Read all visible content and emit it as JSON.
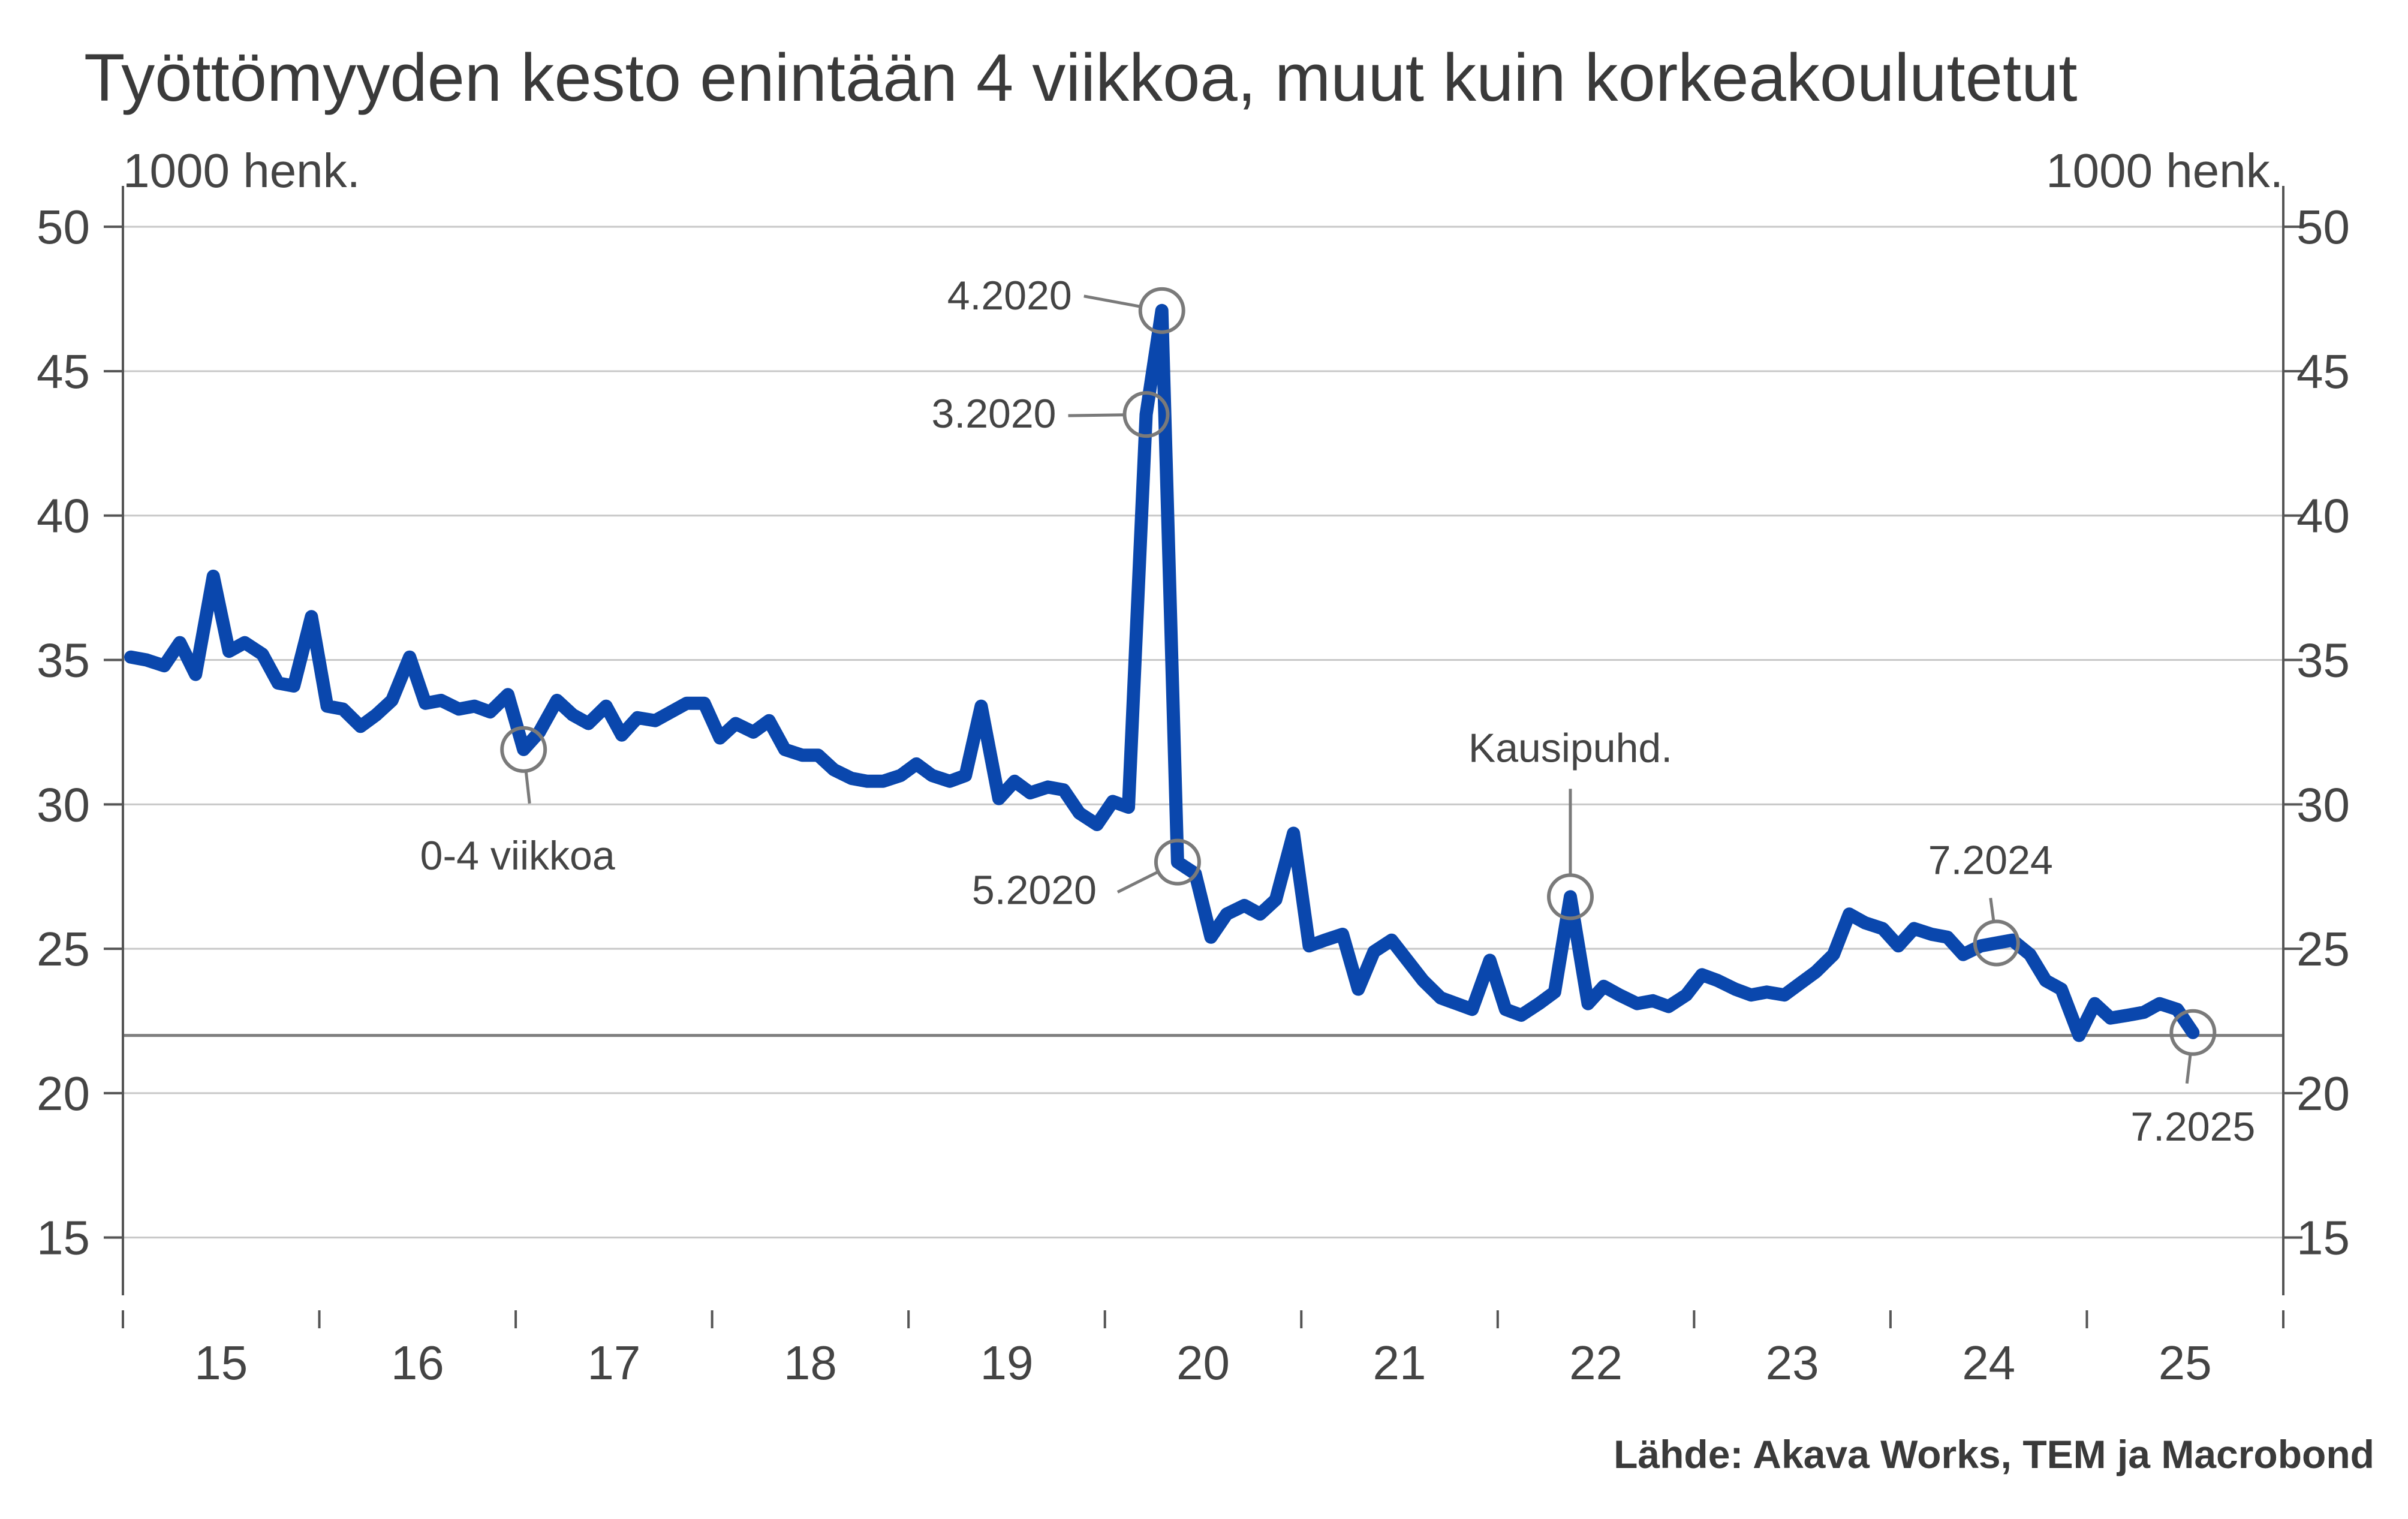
{
  "chart_data": {
    "type": "line",
    "title": "Työttömyyden kesto enintään 4 viikkoa, muut kuin korkeakoulutetut",
    "ylabel_left": "1000 henk.",
    "ylabel_right": "1000 henk.",
    "source": "Lähde: Akava Works, TEM ja Macrobond",
    "ylim": [
      13,
      51
    ],
    "yticks": [
      15,
      20,
      25,
      30,
      35,
      40,
      45,
      50
    ],
    "xlim": [
      2015.0,
      2026.0
    ],
    "xtick_labels": [
      "15",
      "16",
      "17",
      "18",
      "19",
      "20",
      "21",
      "22",
      "23",
      "24",
      "25"
    ],
    "reference_line": 22.0,
    "grid": true,
    "series": [
      {
        "color": "#0a47ad",
        "x": [
          2015.04,
          2015.12,
          2015.21,
          2015.29,
          2015.37,
          2015.46,
          2015.54,
          2015.62,
          2015.71,
          2015.79,
          2015.87,
          2015.96,
          2016.04,
          2016.12,
          2016.21,
          2016.29,
          2016.37,
          2016.46,
          2016.54,
          2016.62,
          2016.71,
          2016.79,
          2016.87,
          2016.96,
          2017.04,
          2017.12,
          2017.21,
          2017.29,
          2017.37,
          2017.46,
          2017.54,
          2017.62,
          2017.71,
          2017.79,
          2017.87,
          2017.96,
          2018.04,
          2018.12,
          2018.21,
          2018.29,
          2018.37,
          2018.46,
          2018.54,
          2018.62,
          2018.71,
          2018.79,
          2018.87,
          2018.96,
          2019.04,
          2019.12,
          2019.21,
          2019.29,
          2019.37,
          2019.46,
          2019.54,
          2019.62,
          2019.71,
          2019.79,
          2019.87,
          2019.96,
          2020.04,
          2020.12,
          2020.21,
          2020.29,
          2020.37,
          2020.46,
          2020.54,
          2020.62,
          2020.71,
          2020.79,
          2020.87,
          2020.96,
          2021.04,
          2021.12,
          2021.21,
          2021.29,
          2021.37,
          2021.46,
          2021.54,
          2021.62,
          2021.71,
          2021.79,
          2021.87,
          2021.96,
          2022.04,
          2022.12,
          2022.21,
          2022.29,
          2022.37,
          2022.46,
          2022.54,
          2022.62,
          2022.71,
          2022.79,
          2022.87,
          2022.96,
          2023.04,
          2023.12,
          2023.21,
          2023.29,
          2023.37,
          2023.46,
          2023.54,
          2023.62,
          2023.71,
          2023.79,
          2023.87,
          2023.96,
          2024.04,
          2024.12,
          2024.21,
          2024.29,
          2024.37,
          2024.46,
          2024.54,
          2024.62,
          2024.71,
          2024.79,
          2024.87,
          2024.96,
          2025.04,
          2025.12,
          2025.21,
          2025.29,
          2025.37,
          2025.46,
          2025.54
        ],
        "values": [
          35.1,
          35.0,
          34.8,
          35.6,
          34.5,
          37.9,
          35.3,
          35.6,
          35.2,
          34.2,
          34.1,
          36.5,
          33.4,
          33.3,
          32.7,
          33.1,
          33.6,
          35.1,
          33.5,
          33.6,
          33.3,
          33.4,
          33.2,
          33.8,
          31.9,
          32.5,
          33.6,
          33.1,
          32.8,
          33.4,
          32.4,
          33.0,
          32.9,
          33.2,
          33.5,
          33.5,
          32.3,
          32.8,
          32.5,
          32.9,
          31.9,
          31.7,
          31.7,
          31.2,
          30.9,
          30.8,
          30.8,
          31.0,
          31.4,
          31.0,
          30.8,
          31.0,
          33.4,
          30.2,
          30.8,
          30.4,
          30.6,
          30.5,
          29.7,
          29.3,
          30.1,
          29.9,
          43.5,
          47.1,
          28.0,
          27.6,
          25.4,
          26.2,
          26.5,
          26.2,
          26.7,
          29.0,
          25.1,
          25.3,
          25.5,
          23.6,
          24.9,
          25.3,
          24.6,
          23.9,
          23.3,
          23.1,
          22.9,
          24.6,
          22.9,
          22.7,
          23.1,
          23.5,
          26.8,
          23.1,
          23.7,
          23.4,
          23.1,
          23.2,
          23.0,
          23.4,
          24.1,
          23.9,
          23.6,
          23.4,
          23.5,
          23.4,
          23.8,
          24.2,
          24.8,
          26.2,
          25.9,
          25.7,
          25.1,
          25.7,
          25.5,
          25.4,
          24.8,
          25.1,
          25.2,
          25.3,
          24.8,
          23.9,
          23.6,
          22.0,
          23.1,
          22.6,
          22.7,
          22.8,
          23.1,
          22.9,
          22.1
        ]
      }
    ],
    "annotations": [
      {
        "text": "4.2020",
        "x": 2020.29,
        "y": 47.1
      },
      {
        "text": "3.2020",
        "x": 2020.21,
        "y": 43.5
      },
      {
        "text": "5.2020",
        "x": 2020.37,
        "y": 28.0
      },
      {
        "text": "0-4 viikkoa",
        "x": 2017.04,
        "y": 31.9
      },
      {
        "text": "Kausipuhd.",
        "x": 2022.37,
        "y": 26.8
      },
      {
        "text": "7.2024",
        "x": 2024.54,
        "y": 25.2
      },
      {
        "text": "7.2025",
        "x": 2025.54,
        "y": 22.1
      }
    ]
  }
}
